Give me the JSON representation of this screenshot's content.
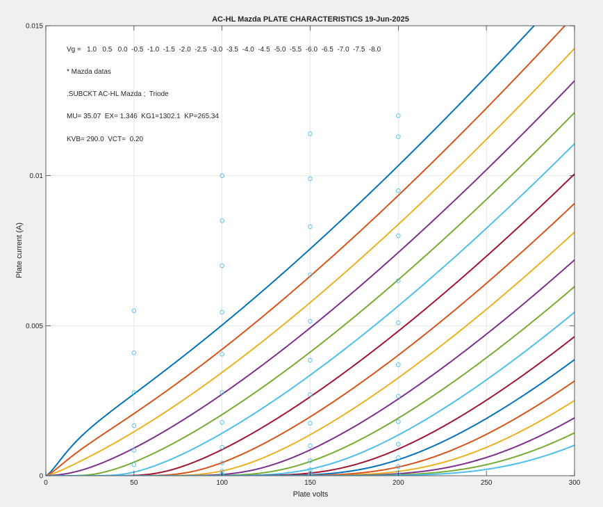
{
  "chart_data": {
    "type": "line",
    "title": "AC-HL Mazda PLATE CHARACTERISTICS  19-Jun-2025",
    "xlabel": "Plate volts",
    "ylabel": "Plate current (A)",
    "xlim": [
      0,
      300
    ],
    "ylim": [
      0,
      0.015
    ],
    "xticks": [
      0,
      50,
      100,
      150,
      200,
      250,
      300
    ],
    "xtick_labels": [
      "0",
      "50",
      "100",
      "150",
      "200",
      "250",
      "300"
    ],
    "yticks": [
      0,
      0.005,
      0.01,
      0.015
    ],
    "ytick_labels": [
      "0",
      "0.005",
      "0.01",
      "0.015"
    ],
    "grid": true,
    "legend": "none",
    "annotations": [
      "Vg =   1.0   0.5   0.0  -0.5  -1.0  -1.5  -2.0  -2.5  -3.0  -3.5  -4.0  -4.5  -5.0  -5.5  -6.0  -6.5  -7.0  -7.5  -8.0",
      "* Mazda datas",
      ".SUBCKT AC-HL Mazda ;  Triode",
      "MU= 35.07  EX= 1.346  KG1=1302.1  KP=265.34",
      "KVB= 290.0  VCT=  0.20"
    ],
    "model": {
      "mu": 35.07,
      "ex": 1.346,
      "kg1": 1302.1,
      "kp": 265.34,
      "kvb": 290.0,
      "vct": 0.2
    },
    "series": [
      {
        "vg": 1.0,
        "color": "#0072BD"
      },
      {
        "vg": 0.5,
        "color": "#D95319"
      },
      {
        "vg": 0.0,
        "color": "#EDB120"
      },
      {
        "vg": -0.5,
        "color": "#7E2F8E"
      },
      {
        "vg": -1.0,
        "color": "#77AC30"
      },
      {
        "vg": -1.5,
        "color": "#4DBEEE"
      },
      {
        "vg": -2.0,
        "color": "#A2142F"
      },
      {
        "vg": -2.5,
        "color": "#D95319"
      },
      {
        "vg": -3.0,
        "color": "#EDB120"
      },
      {
        "vg": -3.5,
        "color": "#7E2F8E"
      },
      {
        "vg": -4.0,
        "color": "#77AC30"
      },
      {
        "vg": -4.5,
        "color": "#4DBEEE"
      },
      {
        "vg": -5.0,
        "color": "#A2142F"
      },
      {
        "vg": -5.5,
        "color": "#0072BD"
      },
      {
        "vg": -6.0,
        "color": "#D95319"
      },
      {
        "vg": -6.5,
        "color": "#EDB120"
      },
      {
        "vg": -7.0,
        "color": "#7E2F8E"
      },
      {
        "vg": -7.5,
        "color": "#77AC30"
      },
      {
        "vg": -8.0,
        "color": "#4DBEEE"
      }
    ],
    "measured_points": {
      "color": "#4DBEEE",
      "x": [
        50,
        50,
        50,
        50,
        50,
        50,
        100,
        100,
        100,
        100,
        100,
        100,
        100,
        100,
        100,
        100,
        100,
        100,
        150,
        150,
        150,
        150,
        150,
        150,
        150,
        150,
        150,
        150,
        150,
        150,
        150,
        200,
        200,
        200,
        200,
        200,
        200,
        200,
        200,
        200,
        200,
        200,
        200,
        200
      ],
      "y": [
        0.0055,
        0.0041,
        0.00277,
        0.00167,
        0.00085,
        0.00037,
        0.01,
        0.0085,
        0.007,
        0.00545,
        0.00405,
        0.00277,
        0.00178,
        0.00095,
        0.00043,
        0.00015,
        5e-05,
        1e-05,
        0.0114,
        0.0099,
        0.0083,
        0.0067,
        0.00515,
        0.00385,
        0.0027,
        0.00175,
        0.001,
        0.0005,
        0.0002,
        8e-05,
        2e-05,
        0.012,
        0.0113,
        0.0095,
        0.008,
        0.0065,
        0.0051,
        0.0037,
        0.00265,
        0.0018,
        0.00105,
        0.0006,
        0.0003,
        0.0001
      ]
    }
  }
}
